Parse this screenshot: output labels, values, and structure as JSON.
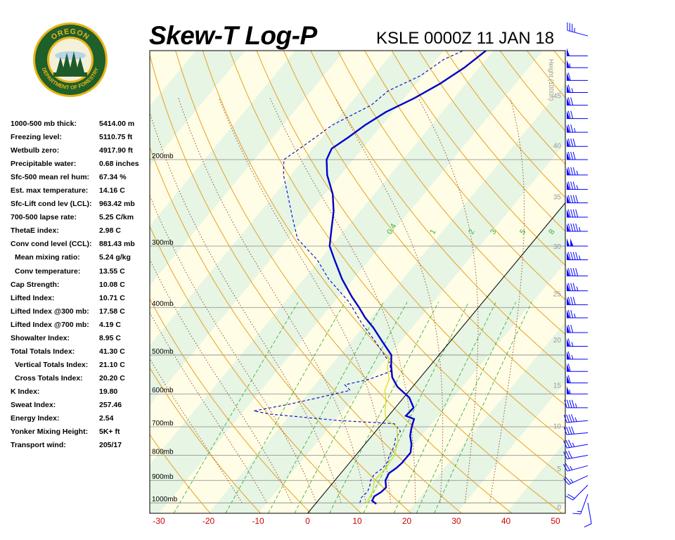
{
  "header": {
    "title": "Skew-T Log-P",
    "subtitle": "KSLE 0000Z 11 JAN 18"
  },
  "logo": {
    "text_top": "OREGON",
    "text_bottom": "DEPARTMENT OF FORESTRY",
    "colors": {
      "ring": "#1f5f2a",
      "gold": "#e8b418",
      "tree": "#1d5b2a"
    }
  },
  "indices": [
    {
      "label": "1000-500 mb thick:",
      "value": "5414.00 m"
    },
    {
      "label": "Freezing level:",
      "value": "5110.75 ft"
    },
    {
      "label": "Wetbulb zero:",
      "value": "4917.90 ft"
    },
    {
      "label": "Precipitable water:",
      "value": "0.68 inches"
    },
    {
      "label": "Sfc-500 mean rel hum:",
      "value": "67.34 %"
    },
    {
      "label": "Est. max temperature:",
      "value": "14.16 C"
    },
    {
      "label": "Sfc-Lift cond lev (LCL):",
      "value": "963.42 mb"
    },
    {
      "label": "700-500 lapse rate:",
      "value": "5.25 C/km"
    },
    {
      "label": "ThetaE index:",
      "value": "2.98 C"
    },
    {
      "label": "Conv cond level (CCL):",
      "value": "881.43 mb"
    },
    {
      "label": "Mean mixing ratio:",
      "value": "5.24 g/kg",
      "indent": true
    },
    {
      "label": "Conv temperature:",
      "value": "13.55 C",
      "indent": true
    },
    {
      "label": "Cap Strength:",
      "value": "10.08 C"
    },
    {
      "label": "Lifted Index:",
      "value": "10.71 C"
    },
    {
      "label": "Lifted Index @300 mb:",
      "value": "17.58 C"
    },
    {
      "label": "Lifted Index @700 mb:",
      "value": "4.19 C"
    },
    {
      "label": "Showalter Index:",
      "value": "8.95 C"
    },
    {
      "label": "Total Totals Index:",
      "value": "41.30 C"
    },
    {
      "label": "Vertical Totals Index:",
      "value": "21.10 C",
      "indent": true
    },
    {
      "label": "Cross Totals Index:",
      "value": "20.20 C",
      "indent": true
    },
    {
      "label": "K Index:",
      "value": "19.80"
    },
    {
      "label": "Sweat Index:",
      "value": "257.46"
    },
    {
      "label": "Energy Index:",
      "value": "2.54"
    },
    {
      "label": "Yonker Mixing Height:",
      "value": "5K+ ft"
    },
    {
      "label": "Transport wind:",
      "value": "205/17"
    }
  ],
  "chart_data": {
    "type": "line",
    "diagram": "skew-t log-p",
    "x_axis": {
      "unit": "C",
      "range": [
        -30,
        50
      ],
      "ticks": [
        -30,
        -20,
        -10,
        0,
        10,
        20,
        30,
        40,
        50
      ]
    },
    "pressure_levels": [
      {
        "mb": 200,
        "label": "200mb"
      },
      {
        "mb": 300,
        "label": "300mb"
      },
      {
        "mb": 400,
        "label": "400mb"
      },
      {
        "mb": 500,
        "label": "500mb"
      },
      {
        "mb": 600,
        "label": "600mb"
      },
      {
        "mb": 700,
        "label": "700mb"
      },
      {
        "mb": 800,
        "label": "800mb"
      },
      {
        "mb": 900,
        "label": "900mb"
      },
      {
        "mb": 1000,
        "label": "1000mb"
      }
    ],
    "pressure_range_mb": [
      120,
      1050
    ],
    "height_axis": {
      "title": "Height (1000ft)",
      "ticks": [
        {
          "kft": 0,
          "mb": 1020
        },
        {
          "kft": 5,
          "mb": 850
        },
        {
          "kft": 10,
          "mb": 697
        },
        {
          "kft": 15,
          "mb": 575
        },
        {
          "kft": 20,
          "mb": 465
        },
        {
          "kft": 25,
          "mb": 375
        },
        {
          "kft": 30,
          "mb": 300
        },
        {
          "kft": 35,
          "mb": 238
        },
        {
          "kft": 40,
          "mb": 187
        },
        {
          "kft": 45,
          "mb": 148
        },
        {
          "kft": 50,
          "mb": 118
        }
      ]
    },
    "mixing_ratio_labels": [
      "0.4",
      "1",
      "2",
      "3",
      "5",
      "8"
    ],
    "mixing_ratios_gkg": [
      0.4,
      1,
      2,
      3,
      5,
      8,
      12,
      16,
      20
    ],
    "dry_adiabats_K": [
      250,
      260,
      270,
      280,
      290,
      300,
      310,
      320,
      330,
      340,
      350,
      360,
      370,
      380,
      390,
      400,
      410,
      420,
      430,
      440,
      450
    ],
    "moist_adiabats_C": [
      -15,
      -10,
      -5,
      0,
      5,
      10,
      15,
      20,
      25,
      30,
      35
    ],
    "series": [
      {
        "key": "temperature",
        "color": "#0000cc",
        "style": "solid",
        "points": [
          {
            "p": 1005,
            "t": 12.3
          },
          {
            "p": 990,
            "t": 10.9
          },
          {
            "p": 970,
            "t": 10.6
          },
          {
            "p": 950,
            "t": 11.3
          },
          {
            "p": 930,
            "t": 11.5
          },
          {
            "p": 900,
            "t": 10.2
          },
          {
            "p": 870,
            "t": 9.7
          },
          {
            "p": 850,
            "t": 10.3
          },
          {
            "p": 830,
            "t": 10.6
          },
          {
            "p": 790,
            "t": 10.6
          },
          {
            "p": 760,
            "t": 9.4
          },
          {
            "p": 730,
            "t": 7.7
          },
          {
            "p": 710,
            "t": 6.9
          },
          {
            "p": 690,
            "t": 6.2
          },
          {
            "p": 675,
            "t": 5.7
          },
          {
            "p": 665,
            "t": 3.5
          },
          {
            "p": 640,
            "t": 3.7
          },
          {
            "p": 610,
            "t": 1.1
          },
          {
            "p": 580,
            "t": -3.1
          },
          {
            "p": 555,
            "t": -5.7
          },
          {
            "p": 525,
            "t": -7.9
          },
          {
            "p": 500,
            "t": -9.6
          },
          {
            "p": 470,
            "t": -13.6
          },
          {
            "p": 440,
            "t": -17.8
          },
          {
            "p": 420,
            "t": -21.1
          },
          {
            "p": 400,
            "t": -24.1
          },
          {
            "p": 380,
            "t": -27.4
          },
          {
            "p": 350,
            "t": -32.3
          },
          {
            "p": 320,
            "t": -37.0
          },
          {
            "p": 300,
            "t": -40.3
          },
          {
            "p": 275,
            "t": -43.0
          },
          {
            "p": 255,
            "t": -45.3
          },
          {
            "p": 235,
            "t": -48.4
          },
          {
            "p": 215,
            "t": -52.7
          },
          {
            "p": 200,
            "t": -55.4
          },
          {
            "p": 190,
            "t": -56.2
          },
          {
            "p": 180,
            "t": -54.7
          },
          {
            "p": 170,
            "t": -53.4
          },
          {
            "p": 160,
            "t": -51.4
          },
          {
            "p": 150,
            "t": -48.0
          },
          {
            "p": 140,
            "t": -45.2
          },
          {
            "p": 130,
            "t": -43.0
          },
          {
            "p": 120,
            "t": -41.5
          }
        ]
      },
      {
        "key": "dewpoint",
        "color": "#0000cc",
        "style": "dashed",
        "points": [
          {
            "p": 1000,
            "t": 8.8
          },
          {
            "p": 975,
            "t": 8.2
          },
          {
            "p": 950,
            "t": 8.5
          },
          {
            "p": 925,
            "t": 8.0
          },
          {
            "p": 900,
            "t": 7.2
          },
          {
            "p": 875,
            "t": 6.9
          },
          {
            "p": 850,
            "t": 7.6
          },
          {
            "p": 825,
            "t": 7.5
          },
          {
            "p": 800,
            "t": 6.8
          },
          {
            "p": 780,
            "t": 6.5
          },
          {
            "p": 760,
            "t": 6.0
          },
          {
            "p": 740,
            "t": 5.2
          },
          {
            "p": 715,
            "t": 5.0
          },
          {
            "p": 690,
            "t": 2.5
          },
          {
            "p": 680,
            "t": -9.0
          },
          {
            "p": 660,
            "t": -24.0
          },
          {
            "p": 650,
            "t": -28.0
          },
          {
            "p": 630,
            "t": -22.0
          },
          {
            "p": 610,
            "t": -17.0
          },
          {
            "p": 590,
            "t": -12.0
          },
          {
            "p": 575,
            "t": -14.0
          },
          {
            "p": 560,
            "t": -10.0
          },
          {
            "p": 540,
            "t": -7.0
          },
          {
            "p": 520,
            "t": -8.5
          },
          {
            "p": 500,
            "t": -11.0
          },
          {
            "p": 470,
            "t": -15.0
          },
          {
            "p": 430,
            "t": -21.0
          },
          {
            "p": 390,
            "t": -27.0
          },
          {
            "p": 350,
            "t": -35.0
          },
          {
            "p": 320,
            "t": -40.5
          },
          {
            "p": 290,
            "t": -48.0
          },
          {
            "p": 260,
            "t": -53.0
          },
          {
            "p": 235,
            "t": -57.5
          },
          {
            "p": 215,
            "t": -61.5
          },
          {
            "p": 200,
            "t": -64.0
          },
          {
            "p": 185,
            "t": -62.0
          },
          {
            "p": 170,
            "t": -60.0
          },
          {
            "p": 155,
            "t": -55.5
          },
          {
            "p": 145,
            "t": -54.5
          },
          {
            "p": 135,
            "t": -50.5
          },
          {
            "p": 125,
            "t": -48.5
          },
          {
            "p": 118,
            "t": -45.0
          }
        ]
      },
      {
        "key": "wetbulb",
        "color": "#d8d800",
        "style": "solid",
        "points": [
          {
            "p": 1000,
            "t": 10.2
          },
          {
            "p": 950,
            "t": 9.5
          },
          {
            "p": 900,
            "t": 8.0
          },
          {
            "p": 850,
            "t": 8.2
          },
          {
            "p": 800,
            "t": 7.8
          },
          {
            "p": 750,
            "t": 6.2
          },
          {
            "p": 700,
            "t": 3.5
          },
          {
            "p": 675,
            "t": 0.0
          },
          {
            "p": 650,
            "t": -1.5
          },
          {
            "p": 620,
            "t": -3.0
          },
          {
            "p": 590,
            "t": -5.0
          },
          {
            "p": 560,
            "t": -6.0
          },
          {
            "p": 530,
            "t": -8.3
          },
          {
            "p": 500,
            "t": -10.0
          }
        ]
      }
    ],
    "wind_barbs": {
      "color": "#0000ff",
      "units": "kt",
      "levels": [
        {
          "p": 1000,
          "dir": 170,
          "spd": 10
        },
        {
          "p": 960,
          "dir": 200,
          "spd": 15
        },
        {
          "p": 920,
          "dir": 225,
          "spd": 20
        },
        {
          "p": 880,
          "dir": 245,
          "spd": 25
        },
        {
          "p": 840,
          "dir": 255,
          "spd": 25
        },
        {
          "p": 800,
          "dir": 260,
          "spd": 30
        },
        {
          "p": 760,
          "dir": 260,
          "spd": 35
        },
        {
          "p": 720,
          "dir": 265,
          "spd": 40
        },
        {
          "p": 680,
          "dir": 265,
          "spd": 45
        },
        {
          "p": 640,
          "dir": 270,
          "spd": 45
        },
        {
          "p": 600,
          "dir": 270,
          "spd": 55
        },
        {
          "p": 570,
          "dir": 270,
          "spd": 60
        },
        {
          "p": 540,
          "dir": 270,
          "spd": 60
        },
        {
          "p": 510,
          "dir": 270,
          "spd": 65
        },
        {
          "p": 480,
          "dir": 270,
          "spd": 65
        },
        {
          "p": 450,
          "dir": 270,
          "spd": 70
        },
        {
          "p": 420,
          "dir": 270,
          "spd": 75
        },
        {
          "p": 395,
          "dir": 270,
          "spd": 80
        },
        {
          "p": 370,
          "dir": 270,
          "spd": 85
        },
        {
          "p": 345,
          "dir": 270,
          "spd": 90
        },
        {
          "p": 320,
          "dir": 270,
          "spd": 95
        },
        {
          "p": 300,
          "dir": 270,
          "spd": 100
        },
        {
          "p": 280,
          "dir": 270,
          "spd": 95
        },
        {
          "p": 262,
          "dir": 270,
          "spd": 90
        },
        {
          "p": 245,
          "dir": 270,
          "spd": 90
        },
        {
          "p": 230,
          "dir": 270,
          "spd": 85
        },
        {
          "p": 215,
          "dir": 270,
          "spd": 85
        },
        {
          "p": 200,
          "dir": 270,
          "spd": 80
        },
        {
          "p": 188,
          "dir": 270,
          "spd": 80
        },
        {
          "p": 176,
          "dir": 270,
          "spd": 75
        },
        {
          "p": 165,
          "dir": 270,
          "spd": 70
        },
        {
          "p": 155,
          "dir": 270,
          "spd": 70
        },
        {
          "p": 146,
          "dir": 270,
          "spd": 65
        },
        {
          "p": 138,
          "dir": 270,
          "spd": 60
        },
        {
          "p": 130,
          "dir": 270,
          "spd": 55
        },
        {
          "p": 123,
          "dir": 270,
          "spd": 50
        },
        {
          "p": 112,
          "dir": 285,
          "spd": 35
        }
      ]
    },
    "colors": {
      "band_light": "#fffde6",
      "band_green": "#e6f5e4",
      "isobar": "#888888",
      "isotherm_zero": "#000000",
      "dry_adiabat": "#e8a020",
      "moist_adiabat": "#a05030",
      "mixing_ratio": "#40b040",
      "tick_label": "#cc0000",
      "height_label": "#999999"
    }
  }
}
